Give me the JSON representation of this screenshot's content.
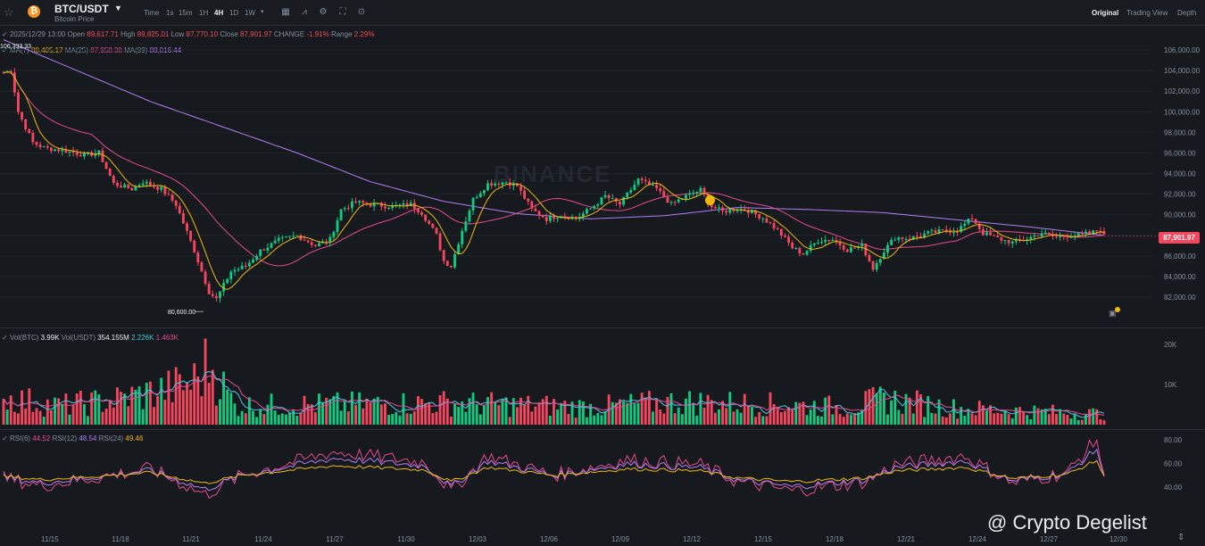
{
  "header": {
    "pair": "BTC/USDT",
    "subtitle": "Bitcoin Price",
    "coin_glyph": "₿",
    "intervals": [
      "Time",
      "1s",
      "15m",
      "1H",
      "4H",
      "1D",
      "1W"
    ],
    "active_interval": "4H",
    "views": [
      "Original",
      "Trading View",
      "Depth"
    ],
    "active_view": "Original",
    "icons": [
      "star-icon",
      "bitcoin-icon",
      "chevron-down-icon",
      "calendar-icon",
      "indicator-icon",
      "settings-icon",
      "fullscreen-icon",
      "more-icon"
    ]
  },
  "ohlc": {
    "date": "2025/12/29 13:00",
    "open_label": "Open",
    "open": "89,617.71",
    "high_label": "High",
    "high": "89,825.01",
    "low_label": "Low",
    "low": "87,770.10",
    "close_label": "Close",
    "close": "87,901.97",
    "change_label": "CHANGE",
    "change": "-1.91%",
    "range_label": "Range",
    "range": "2.29%"
  },
  "ma": {
    "ma7_label": "MA(7)",
    "ma7": "88,405.17",
    "ma25_label": "MA(25)",
    "ma25": "87,958.38",
    "ma99_label": "MA(99)",
    "ma99": "88,016.44"
  },
  "vol": {
    "vol_btc_label": "Vol(BTC)",
    "vol_btc": "3.99K",
    "vol_usdt_label": "Vol(USDT)",
    "vol_usdt": "354.155M",
    "v1": "2.226K",
    "v2": "1.463K"
  },
  "rsi": {
    "rsi6_label": "RSI(6)",
    "rsi6": "44.52",
    "rsi12_label": "RSI(12)",
    "rsi12": "48.54",
    "rsi24_label": "RSI(24)",
    "rsi24": "49.46"
  },
  "annotations": {
    "high_label": "106,333.33",
    "low_label": "80,600.00",
    "last_price": "87,901.97",
    "watermark": "BINANCE",
    "credit": "@ Crypto Degelist"
  },
  "colors": {
    "up": "#0ecb81",
    "down": "#f6465d",
    "ma7": "#f0b90b",
    "ma25": "#e8498f",
    "ma99": "#b07ff6",
    "bg": "#161a1e"
  },
  "chart_data": {
    "type": "candlestick",
    "interval": "4H",
    "price_axis": {
      "ticks": [
        82000,
        84000,
        86000,
        88000,
        90000,
        92000,
        94000,
        96000,
        98000,
        100000,
        102000,
        104000,
        106000
      ],
      "tick_labels": [
        "82,000.00",
        "84,000.00",
        "86,000.00",
        "88,000.00",
        "90,000.00",
        "92,000.00",
        "94,000.00",
        "96,000.00",
        "98,000.00",
        "100,000.00",
        "102,000.00",
        "104,000.00",
        "106,000.00"
      ],
      "ylim": [
        80000,
        107000
      ]
    },
    "volume_axis": {
      "tick_labels": [
        "10K",
        "20K"
      ],
      "ticks": [
        10000,
        20000
      ],
      "ylim": [
        0,
        24000
      ]
    },
    "rsi_axis": {
      "tick_labels": [
        "40.00",
        "60.00",
        "80.00"
      ],
      "ticks": [
        40,
        60,
        80
      ],
      "ylim": [
        25,
        87
      ]
    },
    "x_ticks": [
      "11/15",
      "11/18",
      "11/21",
      "11/24",
      "11/27",
      "11/30",
      "12/03",
      "12/06",
      "12/09",
      "12/12",
      "12/15",
      "12/18",
      "12/21",
      "12/24",
      "12/27",
      "12/30"
    ],
    "close_anchors": [
      [
        0,
        103800
      ],
      [
        2,
        104000
      ],
      [
        4,
        100000
      ],
      [
        8,
        97000
      ],
      [
        11,
        96500
      ],
      [
        17,
        96200
      ],
      [
        22,
        95800
      ],
      [
        26,
        96000
      ],
      [
        30,
        93000
      ],
      [
        35,
        92500
      ],
      [
        38,
        93200
      ],
      [
        43,
        92500
      ],
      [
        47,
        91000
      ],
      [
        52,
        86500
      ],
      [
        56,
        82500
      ],
      [
        58,
        81800
      ],
      [
        62,
        84500
      ],
      [
        66,
        85000
      ],
      [
        70,
        86500
      ],
      [
        75,
        87500
      ],
      [
        80,
        88000
      ],
      [
        85,
        87000
      ],
      [
        89,
        87600
      ],
      [
        92,
        90500
      ],
      [
        96,
        91200
      ],
      [
        100,
        91000
      ],
      [
        106,
        90800
      ],
      [
        111,
        91000
      ],
      [
        114,
        90200
      ],
      [
        118,
        88000
      ],
      [
        120,
        85500
      ],
      [
        122,
        85000
      ],
      [
        125,
        88500
      ],
      [
        128,
        91500
      ],
      [
        132,
        93000
      ],
      [
        137,
        93200
      ],
      [
        140,
        92800
      ],
      [
        144,
        90500
      ],
      [
        148,
        89600
      ],
      [
        152,
        90000
      ],
      [
        156,
        89600
      ],
      [
        160,
        90600
      ],
      [
        164,
        91800
      ],
      [
        168,
        91000
      ],
      [
        173,
        93400
      ],
      [
        178,
        92500
      ],
      [
        182,
        91000
      ],
      [
        186,
        91800
      ],
      [
        190,
        92400
      ],
      [
        193,
        90800
      ],
      [
        196,
        90300
      ],
      [
        200,
        90600
      ],
      [
        203,
        90400
      ],
      [
        207,
        89700
      ],
      [
        211,
        88500
      ],
      [
        215,
        86800
      ],
      [
        218,
        86200
      ],
      [
        222,
        87500
      ],
      [
        226,
        87600
      ],
      [
        230,
        86600
      ],
      [
        234,
        87000
      ],
      [
        237,
        84800
      ],
      [
        240,
        86500
      ],
      [
        243,
        87800
      ],
      [
        247,
        87700
      ],
      [
        252,
        88200
      ],
      [
        256,
        88400
      ],
      [
        260,
        88500
      ],
      [
        264,
        89700
      ],
      [
        267,
        88200
      ],
      [
        271,
        87700
      ],
      [
        275,
        87300
      ],
      [
        279,
        87700
      ],
      [
        283,
        88200
      ],
      [
        287,
        87800
      ],
      [
        290,
        88000
      ],
      [
        293,
        88000
      ],
      [
        297,
        88300
      ],
      [
        299,
        88600
      ],
      [
        300,
        87900
      ]
    ],
    "ma99_anchors": [
      [
        0,
        107000
      ],
      [
        20,
        104000
      ],
      [
        40,
        101000
      ],
      [
        60,
        98500
      ],
      [
        80,
        96000
      ],
      [
        100,
        93200
      ],
      [
        120,
        91300
      ],
      [
        140,
        90100
      ],
      [
        160,
        89600
      ],
      [
        180,
        89900
      ],
      [
        200,
        90700
      ],
      [
        220,
        90500
      ],
      [
        240,
        90200
      ],
      [
        260,
        89500
      ],
      [
        280,
        88800
      ],
      [
        300,
        88000
      ]
    ],
    "candles": 301,
    "volume_peaks": [
      [
        0,
        10000
      ],
      [
        15,
        7000
      ],
      [
        30,
        9000
      ],
      [
        48,
        14000
      ],
      [
        52,
        16000
      ],
      [
        56,
        23000
      ],
      [
        63,
        7000
      ],
      [
        120,
        8000
      ],
      [
        160,
        6500
      ],
      [
        185,
        8500
      ],
      [
        230,
        6500
      ],
      [
        240,
        9500
      ],
      [
        260,
        6000
      ],
      [
        300,
        4000
      ]
    ],
    "rsi_anchors": [
      [
        0,
        48
      ],
      [
        10,
        42
      ],
      [
        25,
        48
      ],
      [
        40,
        55
      ],
      [
        55,
        35
      ],
      [
        65,
        50
      ],
      [
        90,
        68
      ],
      [
        115,
        60
      ],
      [
        122,
        38
      ],
      [
        132,
        65
      ],
      [
        150,
        50
      ],
      [
        170,
        62
      ],
      [
        190,
        58
      ],
      [
        200,
        45
      ],
      [
        215,
        38
      ],
      [
        235,
        45
      ],
      [
        243,
        58
      ],
      [
        262,
        65
      ],
      [
        275,
        44
      ],
      [
        290,
        52
      ],
      [
        298,
        78
      ],
      [
        300,
        46
      ]
    ],
    "high_annotation": {
      "label": "106,333.33",
      "value": 106333.33
    },
    "low_annotation": {
      "label": "80,600.00",
      "value": 80600
    },
    "last_price": 87901.97
  }
}
